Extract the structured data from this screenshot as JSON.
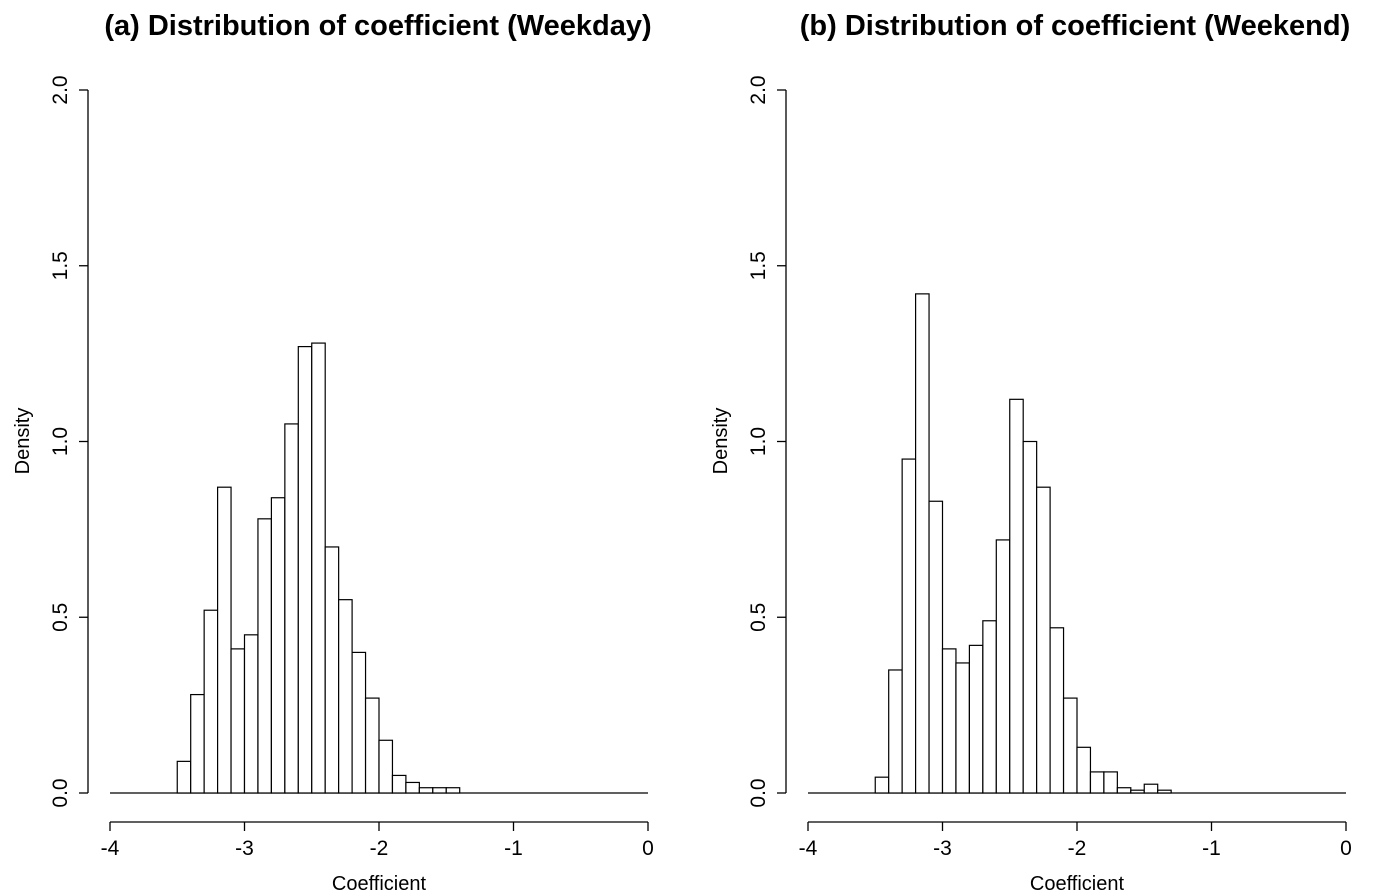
{
  "chart_data": [
    {
      "type": "bar",
      "title": "(a) Distribution of coefficient (Weekday)",
      "xlabel": "Coefficient",
      "ylabel": "Density",
      "xlim": [
        -4,
        0
      ],
      "ylim": [
        0,
        2.0
      ],
      "x_ticks": [
        -4,
        -3,
        -2,
        -1,
        0
      ],
      "x_tick_labels": [
        "-4",
        "-3",
        "-2",
        "-1",
        "0"
      ],
      "y_ticks": [
        0,
        0.5,
        1.0,
        1.5,
        2.0
      ],
      "y_tick_labels": [
        "0.0",
        "0.5",
        "1.0",
        "1.5",
        "2.0"
      ],
      "bin_width": 0.1,
      "bin_starts": [
        -3.5,
        -3.4,
        -3.3,
        -3.2,
        -3.1,
        -3.0,
        -2.9,
        -2.8,
        -2.7,
        -2.6,
        -2.5,
        -2.4,
        -2.3,
        -2.2,
        -2.1,
        -2.0,
        -1.9,
        -1.8,
        -1.7,
        -1.6,
        -1.5
      ],
      "values": [
        0.09,
        0.28,
        0.52,
        0.87,
        0.41,
        0.45,
        0.78,
        0.84,
        1.05,
        1.27,
        1.28,
        0.7,
        0.55,
        0.4,
        0.27,
        0.15,
        0.05,
        0.03,
        0.015,
        0.015,
        0.015
      ],
      "grid": false
    },
    {
      "type": "bar",
      "title": "(b) Distribution of coefficient (Weekend)",
      "xlabel": "Coefficient",
      "ylabel": "Density",
      "xlim": [
        -4,
        0
      ],
      "ylim": [
        0,
        2.0
      ],
      "x_ticks": [
        -4,
        -3,
        -2,
        -1,
        0
      ],
      "x_tick_labels": [
        "-4",
        "-3",
        "-2",
        "-1",
        "0"
      ],
      "y_ticks": [
        0,
        0.5,
        1.0,
        1.5,
        2.0
      ],
      "y_tick_labels": [
        "0.0",
        "0.5",
        "1.0",
        "1.5",
        "2.0"
      ],
      "bin_width": 0.1,
      "bin_starts": [
        -3.5,
        -3.4,
        -3.3,
        -3.2,
        -3.1,
        -3.0,
        -2.9,
        -2.8,
        -2.7,
        -2.6,
        -2.5,
        -2.4,
        -2.3,
        -2.2,
        -2.1,
        -2.0,
        -1.9,
        -1.8,
        -1.7,
        -1.6,
        -1.5,
        -1.4
      ],
      "values": [
        0.045,
        0.35,
        0.95,
        1.42,
        0.83,
        0.41,
        0.37,
        0.42,
        0.49,
        0.72,
        1.12,
        1.0,
        0.87,
        0.47,
        0.27,
        0.13,
        0.06,
        0.06,
        0.015,
        0.008,
        0.025,
        0.008
      ],
      "grid": false
    }
  ]
}
